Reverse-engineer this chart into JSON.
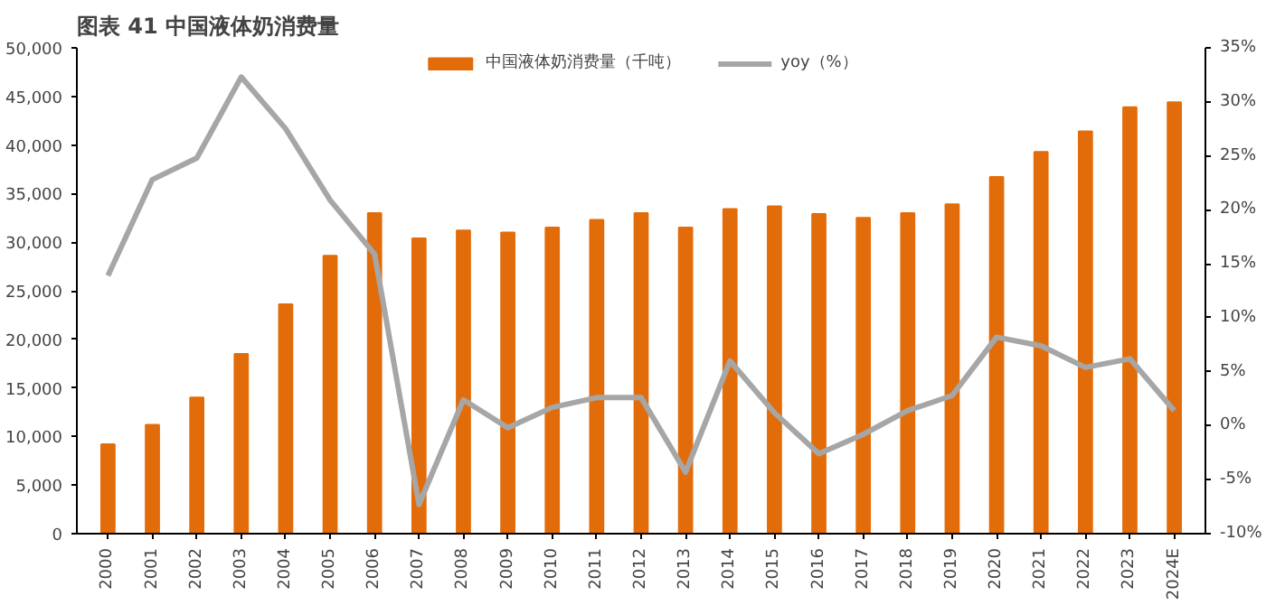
{
  "chart_data": {
    "type": "bar",
    "title": "图表 41    中国液体奶消费量",
    "categories": [
      "2000",
      "2001",
      "2002",
      "2003",
      "2004",
      "2005",
      "2006",
      "2007",
      "2008",
      "2009",
      "2010",
      "2011",
      "2012",
      "2013",
      "2014",
      "2015",
      "2016",
      "2017",
      "2018",
      "2019",
      "2020",
      "2021",
      "2022",
      "2023",
      "2024E"
    ],
    "series": [
      {
        "name": "中国液体奶消费量（千吨）",
        "color": "#e36c0a",
        "values": [
          9200,
          11200,
          14000,
          18500,
          23600,
          28600,
          33000,
          30400,
          31200,
          31000,
          31500,
          32300,
          33000,
          31500,
          33400,
          33700,
          32900,
          32500,
          33000,
          33900,
          36700,
          39300,
          41400,
          43900,
          44400
        ]
      },
      {
        "name": "yoy（%）",
        "type": "line",
        "axis": "y2",
        "color": "#a6a6a6",
        "values": [
          13.9,
          22.8,
          24.8,
          32.3,
          27.5,
          20.9,
          15.9,
          -7.3,
          2.4,
          -0.2,
          1.7,
          2.6,
          2.6,
          -4.3,
          6.0,
          1.2,
          -2.6,
          -0.8,
          1.4,
          2.8,
          8.2,
          7.4,
          5.4,
          6.2,
          1.4
        ]
      }
    ],
    "ylim": [
      0,
      50000
    ],
    "yticks": [
      {
        "value": 0,
        "label": "0"
      },
      {
        "value": 5000,
        "label": "5,000"
      },
      {
        "value": 10000,
        "label": "10,000"
      },
      {
        "value": 15000,
        "label": "15,000"
      },
      {
        "value": 20000,
        "label": "20,000"
      },
      {
        "value": 25000,
        "label": "25,000"
      },
      {
        "value": 30000,
        "label": "30,000"
      },
      {
        "value": 35000,
        "label": "35,000"
      },
      {
        "value": 40000,
        "label": "40,000"
      },
      {
        "value": 45000,
        "label": "45,000"
      },
      {
        "value": 50000,
        "label": "50,000"
      }
    ],
    "y2lim": [
      -10,
      35
    ],
    "y2ticks": [
      {
        "value": -10,
        "label": "-10%"
      },
      {
        "value": -5,
        "label": "-5%"
      },
      {
        "value": 0,
        "label": "0%"
      },
      {
        "value": 5,
        "label": "5%"
      },
      {
        "value": 10,
        "label": "10%"
      },
      {
        "value": 15,
        "label": "15%"
      },
      {
        "value": 20,
        "label": "20%"
      },
      {
        "value": 25,
        "label": "25%"
      },
      {
        "value": 30,
        "label": "30%"
      },
      {
        "value": 35,
        "label": "35%"
      }
    ],
    "legend": "top",
    "grid": false
  }
}
